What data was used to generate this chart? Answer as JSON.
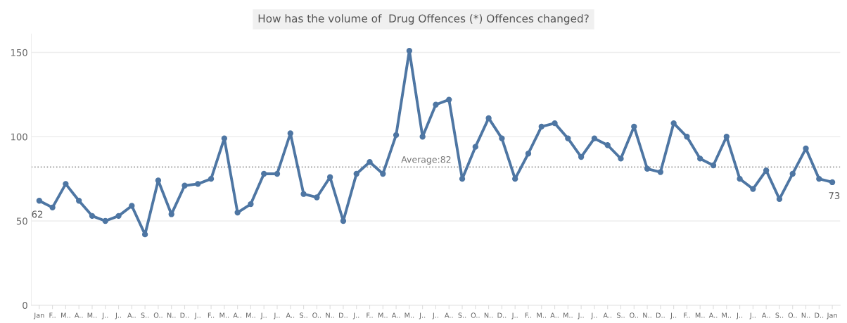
{
  "chart_data": {
    "type": "line",
    "title": "How has the volume of  Drug Offences (*) Offences changed?",
    "categories": [
      "Jan",
      "F..",
      "M..",
      "A..",
      "M..",
      "J..",
      "J..",
      "A..",
      "S..",
      "O..",
      "N..",
      "D..",
      "J..",
      "F..",
      "M..",
      "A..",
      "M..",
      "J..",
      "J..",
      "A..",
      "S..",
      "O..",
      "N..",
      "D..",
      "J..",
      "F..",
      "M..",
      "A..",
      "M..",
      "J..",
      "J..",
      "A..",
      "S..",
      "O..",
      "N..",
      "D..",
      "J..",
      "F..",
      "M..",
      "A..",
      "M..",
      "J..",
      "J..",
      "A..",
      "S..",
      "O..",
      "N..",
      "D..",
      "J..",
      "F..",
      "M..",
      "A..",
      "M..",
      "J..",
      "J..",
      "A..",
      "S..",
      "O..",
      "N..",
      "D..",
      "Jan"
    ],
    "series": [
      {
        "color": "#4e76a3",
        "values": [
          62,
          58,
          72,
          62,
          53,
          50,
          53,
          59,
          42,
          74,
          54,
          71,
          72,
          75,
          99,
          55,
          60,
          78,
          78,
          102,
          66,
          64,
          76,
          50,
          78,
          85,
          78,
          101,
          151,
          100,
          119,
          122,
          75,
          94,
          111,
          99,
          75,
          90,
          106,
          108,
          99,
          88,
          99,
          95,
          87,
          106,
          81,
          79,
          108,
          100,
          87,
          83,
          100,
          75,
          69,
          80,
          63,
          78,
          93,
          75,
          73
        ],
        "value_labels": [
          "62",
          null,
          null,
          null,
          null,
          null,
          null,
          null,
          null,
          null,
          null,
          null,
          null,
          null,
          null,
          null,
          null,
          null,
          null,
          null,
          null,
          null,
          null,
          null,
          null,
          null,
          null,
          null,
          null,
          null,
          null,
          null,
          null,
          null,
          null,
          null,
          null,
          null,
          null,
          null,
          null,
          null,
          null,
          null,
          null,
          null,
          null,
          null,
          null,
          null,
          null,
          null,
          null,
          null,
          null,
          null,
          null,
          null,
          null,
          null,
          "73"
        ]
      }
    ],
    "ylim": [
      0,
      161
    ],
    "yticks": [
      0,
      50,
      100,
      150
    ],
    "grid": "y",
    "marker": "circle",
    "line_style": "solid",
    "ref_lines": [
      {
        "axis": "y",
        "value": 82,
        "label": "Average:82",
        "color": "#999999",
        "line_style": "dotted"
      }
    ]
  }
}
